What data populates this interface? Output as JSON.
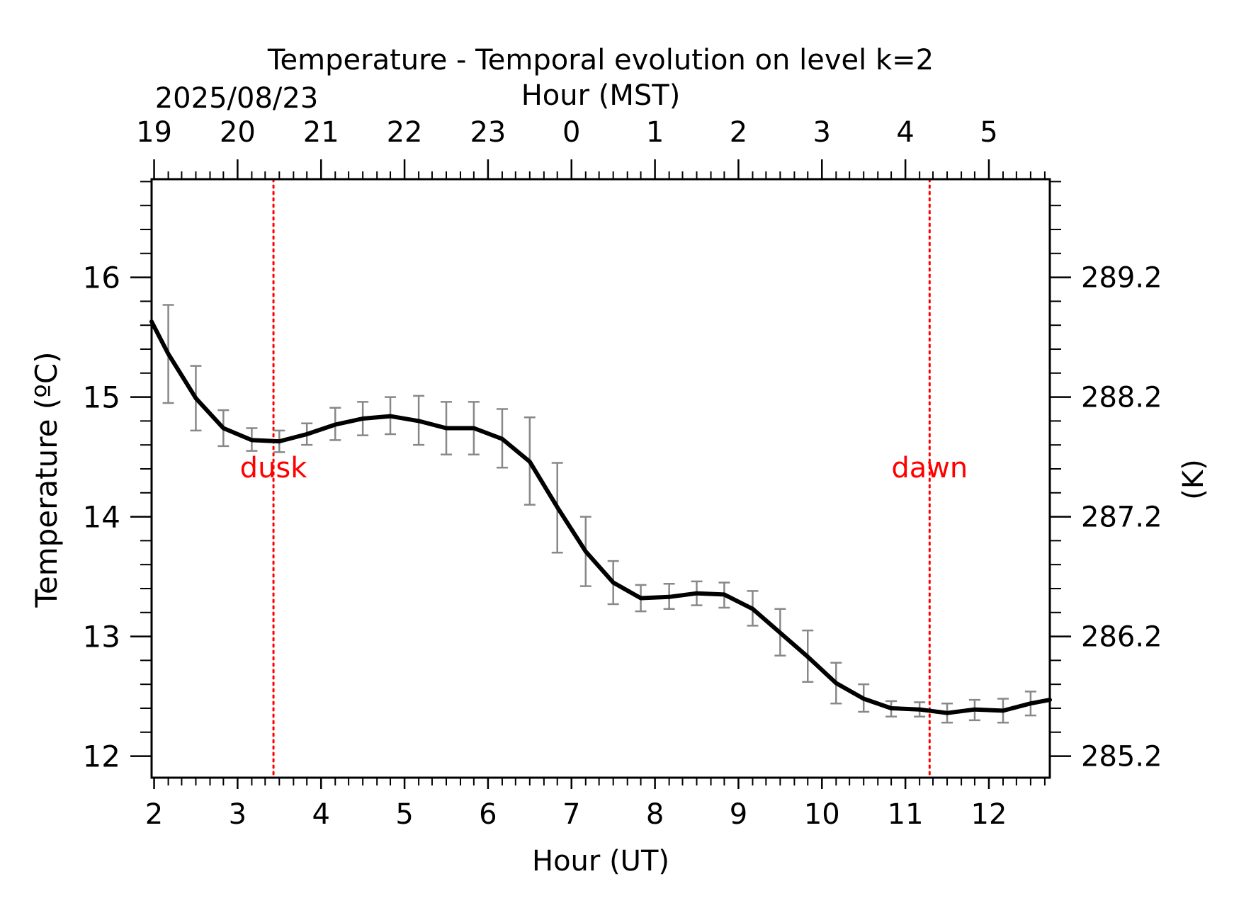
{
  "chart_data": {
    "type": "line",
    "title": "Temperature - Temporal evolution on level k=2",
    "date_label": "2025/08/23",
    "xlabel_bottom": "Hour (UT)",
    "xlabel_top": "Hour (MST)",
    "ylabel_left": "Temperature (ºC)",
    "ylabel_right": "(K)",
    "xlim": [
      1.97,
      12.73
    ],
    "ylim": [
      11.82,
      16.82
    ],
    "x_ticks": [
      2,
      3,
      4,
      5,
      6,
      7,
      8,
      9,
      10,
      11,
      12
    ],
    "x_tick_labels": [
      "2",
      "3",
      "4",
      "5",
      "6",
      "7",
      "8",
      "9",
      "10",
      "11",
      "12"
    ],
    "top_tick_labels": [
      "19",
      "20",
      "21",
      "22",
      "23",
      "0",
      "1",
      "2",
      "3",
      "4",
      "5"
    ],
    "y_ticks": [
      12,
      13,
      14,
      15,
      16
    ],
    "y_tick_labels": [
      "12",
      "13",
      "14",
      "15",
      "16"
    ],
    "right_tick_labels": [
      "285.2",
      "286.2",
      "287.2",
      "288.2",
      "289.2"
    ],
    "series": [
      {
        "color": "#000000",
        "x": [
          1.97,
          2.17,
          2.5,
          2.83,
          3.17,
          3.5,
          3.83,
          4.17,
          4.5,
          4.83,
          5.17,
          5.5,
          5.83,
          6.17,
          6.5,
          6.83,
          7.17,
          7.5,
          7.83,
          8.17,
          8.5,
          8.83,
          9.17,
          9.5,
          9.83,
          10.17,
          10.5,
          10.83,
          11.17,
          11.5,
          11.83,
          12.17,
          12.5,
          12.73
        ],
        "y": [
          15.63,
          15.36,
          14.99,
          14.74,
          14.64,
          14.63,
          14.69,
          14.77,
          14.82,
          14.84,
          14.8,
          14.74,
          14.74,
          14.65,
          14.46,
          14.08,
          13.71,
          13.45,
          13.32,
          13.33,
          13.36,
          13.35,
          13.23,
          13.03,
          12.83,
          12.61,
          12.48,
          12.4,
          12.39,
          12.36,
          12.39,
          12.38,
          12.44,
          12.47
        ],
        "error_x": [
          2.17,
          2.5,
          2.83,
          3.17,
          3.5,
          3.83,
          4.17,
          4.5,
          4.83,
          5.17,
          5.5,
          5.83,
          6.17,
          6.5,
          6.83,
          7.17,
          7.5,
          7.83,
          8.17,
          8.5,
          8.83,
          9.17,
          9.5,
          9.83,
          10.17,
          10.5,
          10.83,
          11.17,
          11.5,
          11.83,
          12.17,
          12.5
        ],
        "error_low": [
          14.95,
          14.72,
          14.59,
          14.55,
          14.54,
          14.6,
          14.64,
          14.68,
          14.69,
          14.6,
          14.52,
          14.52,
          14.41,
          14.1,
          13.7,
          13.42,
          13.27,
          13.21,
          13.23,
          13.26,
          13.24,
          13.09,
          12.84,
          12.62,
          12.44,
          12.37,
          12.33,
          12.33,
          12.28,
          12.3,
          12.28,
          12.34
        ],
        "error_high": [
          15.77,
          15.26,
          14.89,
          14.74,
          14.72,
          14.78,
          14.91,
          14.96,
          15.0,
          15.01,
          14.96,
          14.96,
          14.9,
          14.83,
          14.45,
          14.0,
          13.63,
          13.43,
          13.44,
          13.46,
          13.45,
          13.38,
          13.23,
          13.05,
          12.78,
          12.6,
          12.46,
          12.45,
          12.44,
          12.47,
          12.48,
          12.54
        ],
        "error_color": "#888888"
      }
    ],
    "annotations": [
      {
        "text": "dusk",
        "x": 3.43,
        "y": 14.33,
        "color": "#ff0000"
      },
      {
        "text": "dawn",
        "x": 11.29,
        "y": 14.33,
        "color": "#ff0000"
      }
    ],
    "vertical_lines": [
      {
        "x": 3.43,
        "color": "#ff0000",
        "style": "dotted"
      },
      {
        "x": 11.29,
        "color": "#ff0000",
        "style": "dotted"
      }
    ],
    "grid": false,
    "legend": "none"
  }
}
